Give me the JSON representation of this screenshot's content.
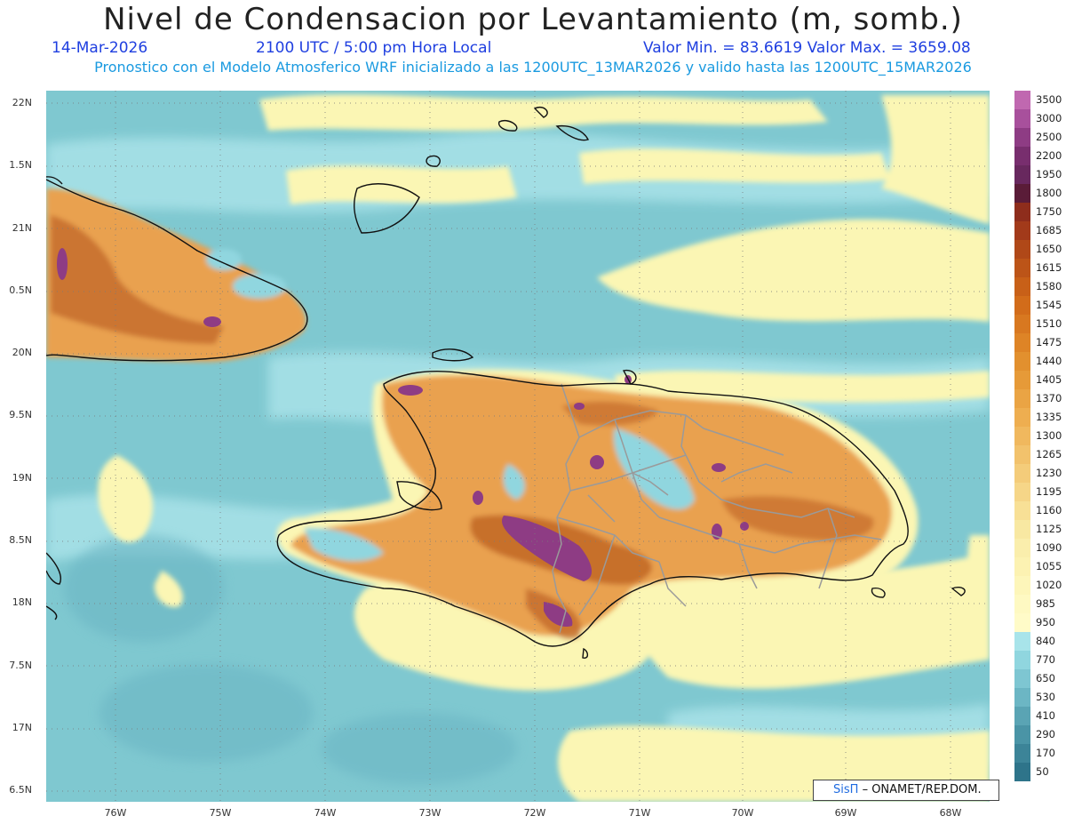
{
  "header": {
    "title": "Nivel de Condensacion por Levantamiento (m, somb.)",
    "date": "14-Mar-2026",
    "time": "2100 UTC / 5:00 pm Hora Local",
    "stats": "Valor Min. = 83.6619   Valor Max. = 3659.08",
    "subtitle": "Pronostico con el Modelo Atmosferico WRF inicializado a las 1200UTC_13MAR2026 y valido hasta las  1200UTC_15MAR2026"
  },
  "axes": {
    "lat_labels": [
      "22N",
      "1.5N",
      "21N",
      "0.5N",
      "20N",
      "9.5N",
      "19N",
      "8.5N",
      "18N",
      "7.5N",
      "17N",
      "6.5N"
    ],
    "lon_labels": [
      "76W",
      "75W",
      "74W",
      "73W",
      "72W",
      "71W",
      "70W",
      "69W",
      "68W"
    ]
  },
  "legend": {
    "levels": [
      "3500",
      "3000",
      "2500",
      "2200",
      "1950",
      "1800",
      "1750",
      "1685",
      "1650",
      "1615",
      "1580",
      "1545",
      "1510",
      "1475",
      "1440",
      "1405",
      "1370",
      "1335",
      "1300",
      "1265",
      "1230",
      "1195",
      "1160",
      "1125",
      "1090",
      "1055",
      "1020",
      "985",
      "950",
      "840",
      "770",
      "650",
      "530",
      "410",
      "290",
      "170",
      "50"
    ],
    "colors": [
      "#c068b0",
      "#a8509c",
      "#8e3c84",
      "#782e6e",
      "#68285e",
      "#5a1c38",
      "#8e2d1c",
      "#a23a1a",
      "#b04818",
      "#bc5418",
      "#c86018",
      "#d26c1a",
      "#d87820",
      "#de8426",
      "#e2902e",
      "#e69a38",
      "#eaa444",
      "#eeae50",
      "#f0b85e",
      "#f2c26c",
      "#f4cc7a",
      "#f6d688",
      "#f8e096",
      "#f8e8a2",
      "#faeeac",
      "#fcf2b2",
      "#fdf6ba",
      "#fef9c2",
      "#fffbc8",
      "#a8e4ea",
      "#90d6df",
      "#7ec6d2",
      "#6cb6c4",
      "#5aa4b4",
      "#4a94a6",
      "#3c8498",
      "#2e748a"
    ]
  },
  "credit": {
    "brand": "SisΠ",
    "text": "– ONAMET/REP.DOM."
  },
  "colors": {
    "sea_base": "#7fc8d0",
    "sea_light": "#a9e2e8",
    "yellow": "#fbf6b4",
    "orange": "#e9a150",
    "brown": "#c36a28",
    "purple": "#8e3c84",
    "coast": "#111111",
    "provinces": "#9a9a9a",
    "grid": "#7a7a7a"
  }
}
